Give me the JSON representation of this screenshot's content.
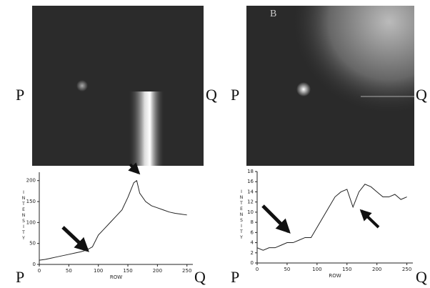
{
  "endpoints": [
    "P",
    "Q"
  ],
  "panel_label": "B",
  "chart_data": [
    {
      "type": "line",
      "xlabel": "ROW",
      "ylabel": "INTENSITY",
      "x": [
        0,
        10,
        20,
        30,
        40,
        50,
        60,
        70,
        80,
        90,
        100,
        110,
        120,
        130,
        140,
        150,
        160,
        165,
        170,
        180,
        190,
        200,
        210,
        220,
        230,
        240,
        250
      ],
      "series": [
        {
          "color": "#222",
          "values": [
            10,
            12,
            15,
            18,
            21,
            24,
            27,
            30,
            34,
            42,
            70,
            85,
            100,
            115,
            130,
            160,
            195,
            200,
            170,
            150,
            140,
            135,
            130,
            125,
            122,
            120,
            118
          ]
        }
      ],
      "xlim": [
        0,
        260
      ],
      "ylim": [
        0,
        220
      ],
      "xticks": [
        0,
        50,
        100,
        150,
        200,
        250
      ],
      "yticks": [
        0,
        50,
        100,
        150,
        200
      ]
    },
    {
      "type": "line",
      "xlabel": "ROW",
      "ylabel": "INTENSITY",
      "x": [
        0,
        10,
        20,
        30,
        40,
        50,
        60,
        70,
        80,
        90,
        100,
        110,
        120,
        130,
        140,
        150,
        160,
        170,
        180,
        190,
        200,
        210,
        220,
        230,
        240,
        250
      ],
      "series": [
        {
          "color": "#222",
          "values": [
            3,
            2.5,
            3,
            3,
            3.5,
            4,
            4,
            4.5,
            5,
            5,
            7,
            9,
            11,
            13,
            14,
            14.5,
            11,
            14,
            15.5,
            15,
            14,
            13,
            13,
            13.5,
            12.5,
            13
          ]
        }
      ],
      "xlim": [
        0,
        260
      ],
      "ylim": [
        0,
        18
      ],
      "xticks": [
        0,
        50,
        100,
        150,
        200,
        250
      ],
      "yticks": [
        0,
        2,
        4,
        6,
        8,
        10,
        12,
        14,
        16,
        18
      ]
    }
  ]
}
